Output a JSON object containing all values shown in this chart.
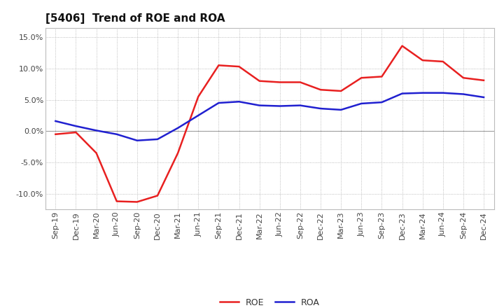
{
  "title": "[5406]  Trend of ROE and ROA",
  "x_labels": [
    "Sep-19",
    "Dec-19",
    "Mar-20",
    "Jun-20",
    "Sep-20",
    "Dec-20",
    "Mar-21",
    "Jun-21",
    "Sep-21",
    "Dec-21",
    "Mar-22",
    "Jun-22",
    "Sep-22",
    "Dec-22",
    "Mar-23",
    "Jun-23",
    "Sep-23",
    "Dec-23",
    "Mar-24",
    "Jun-24",
    "Sep-24",
    "Dec-24"
  ],
  "ROE": [
    -0.5,
    -0.2,
    -3.5,
    -11.2,
    -11.3,
    -10.3,
    -3.5,
    5.5,
    10.5,
    10.3,
    8.0,
    7.8,
    7.8,
    6.6,
    6.4,
    8.5,
    8.7,
    13.6,
    11.3,
    11.1,
    8.5,
    8.1
  ],
  "ROA": [
    1.6,
    0.8,
    0.1,
    -0.5,
    -1.5,
    -1.3,
    0.5,
    2.5,
    4.5,
    4.7,
    4.1,
    4.0,
    4.1,
    3.6,
    3.4,
    4.4,
    4.6,
    6.0,
    6.1,
    6.1,
    5.9,
    5.4
  ],
  "ROE_color": "#e82020",
  "ROA_color": "#2020d0",
  "ylim": [
    -12.5,
    16.5
  ],
  "yticks": [
    -10.0,
    -5.0,
    0.0,
    5.0,
    10.0,
    15.0
  ],
  "grid_color": "#aaaaaa",
  "bg_color": "#ffffff",
  "plot_bg_color": "#ffffff",
  "title_fontsize": 11,
  "axis_fontsize": 8,
  "legend_fontsize": 9,
  "line_width": 1.8
}
